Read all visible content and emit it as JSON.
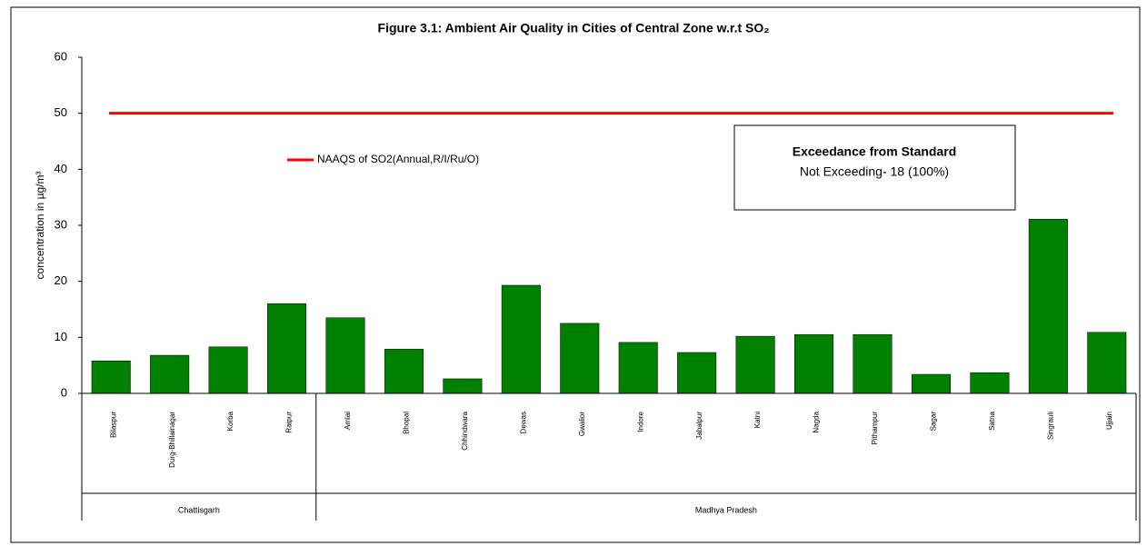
{
  "chart_data": {
    "type": "bar",
    "title": "Figure 3.1: Ambient Air Quality in Cities of Central Zone w.r.t SO₂",
    "y_label": "concentration in µg/m³",
    "groups": [
      {
        "name": "Chattisgarh",
        "categories": [
          "Bilaspur",
          "Durg-Bhillainagar",
          "Korba",
          "Raipur"
        ]
      },
      {
        "name": "Madhya Pradesh",
        "categories": [
          "Amlai",
          "Bhopal",
          "Chhindwara",
          "Dewas",
          "Gwalior",
          "Indore",
          "Jabalpur",
          "Katni",
          "Nagda",
          "Pithampur",
          "Sagar",
          "Satna",
          "Singrauli",
          "Ujjain"
        ]
      }
    ],
    "values": [
      5.8,
      6.8,
      8.3,
      16,
      13.5,
      7.9,
      2.6,
      19.3,
      12.5,
      9.1,
      7.3,
      10.2,
      10.5,
      10.5,
      3.4,
      3.7,
      31.1,
      10.9
    ],
    "color": "#008000",
    "reference_lines": [
      {
        "name": "NAAQS of SO2(Annual,R/I/Ru/O)",
        "value": 50,
        "color": "#ff0000"
      }
    ],
    "annotation": {
      "title": "Exceedance from Standard",
      "text": "Not Exceeding- 18 (100%)"
    },
    "ylim": [
      0,
      60
    ],
    "yticks": [
      0,
      10,
      20,
      30,
      40,
      50,
      60
    ],
    "grid": false
  }
}
